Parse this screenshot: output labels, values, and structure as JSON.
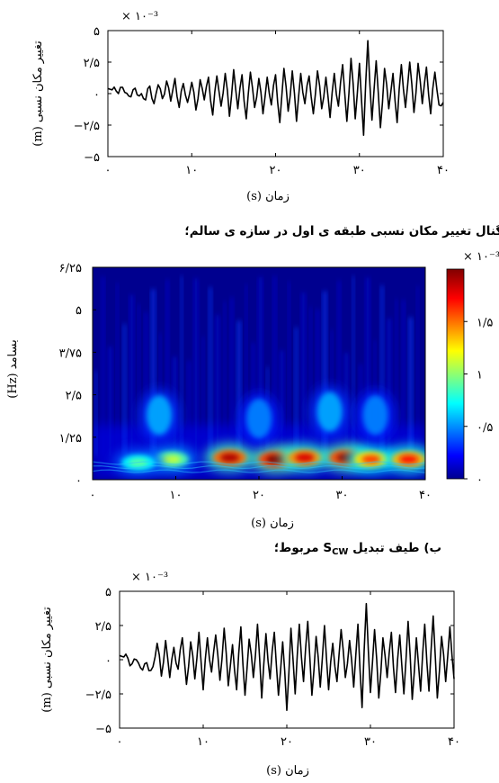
{
  "captions": {
    "a": "الف) سیگنال تغییر مکان نسبی طبقه ی اول در سازه ی سالم؛",
    "b_prefix": "ب) طیف تبدیل",
    "b_sym": "S",
    "b_sub": "CW",
    "b_suffix": "مربوط؛"
  },
  "chart_data": [
    {
      "type": "line",
      "id": "signal-top",
      "xlabel": "زمان (s)",
      "ylabel": "تغییر مکان نسبی (m)",
      "multiplier": "× ۱۰⁻³",
      "xlim": [
        0,
        40
      ],
      "ylim": [
        -5,
        5
      ],
      "xticks": [
        0,
        10,
        20,
        30,
        40
      ],
      "xtick_labels": [
        "۰",
        "۱۰",
        "۲۰",
        "۳۰",
        "۴۰"
      ],
      "yticks": [
        5,
        2.5,
        0,
        -2.5,
        -5
      ],
      "ytick_labels": [
        "۵",
        "۲/۵",
        "۰",
        "−۲/۵",
        "−۵"
      ],
      "series": [
        {
          "x": [
            0,
            0.5,
            1,
            1.5,
            2,
            2.5,
            3,
            3.5,
            4,
            4.5,
            5,
            5.5,
            6,
            6.5,
            7,
            7.5,
            8,
            8.5,
            9,
            9.5,
            10,
            10.5,
            11,
            11.5,
            12,
            12.5,
            13,
            13.5,
            14,
            14.5,
            15,
            15.5,
            16,
            16.5,
            17,
            17.5,
            18,
            18.5,
            19,
            19.5,
            20,
            20.5,
            21,
            21.5,
            22,
            22.5,
            23,
            23.5,
            24,
            24.5,
            25,
            25.5,
            26,
            26.5,
            27,
            27.5,
            28,
            28.5,
            29,
            29.5,
            30,
            30.5,
            31,
            31.5,
            32,
            32.5,
            33,
            33.5,
            34,
            34.5,
            35,
            35.5,
            36,
            36.5,
            37,
            37.5,
            38,
            38.5,
            39,
            39.5,
            40
          ],
          "y": [
            0.4,
            0.3,
            0.2,
            0.5,
            0.1,
            -0.2,
            0.3,
            -0.1,
            0.0,
            -0.5,
            0.6,
            -0.8,
            0.7,
            -0.4,
            1.0,
            -0.6,
            1.2,
            -1.1,
            0.8,
            -0.7,
            0.9,
            -1.3,
            1.1,
            -0.5,
            1.3,
            -1.7,
            1.4,
            -1.0,
            1.6,
            -1.8,
            1.9,
            -1.2,
            1.5,
            -2.0,
            1.7,
            -1.1,
            1.2,
            -1.6,
            1.3,
            -0.9,
            1.5,
            -2.3,
            2.0,
            -1.4,
            1.8,
            -2.2,
            1.6,
            -0.8,
            1.4,
            -1.6,
            1.8,
            -1.2,
            1.3,
            -1.9,
            1.6,
            -1.0,
            2.3,
            -2.2,
            2.8,
            -2.0,
            2.4,
            -3.3,
            4.2,
            -2.1,
            2.6,
            -2.7,
            2.0,
            -1.2,
            1.6,
            -2.3,
            2.3,
            -1.1,
            2.5,
            -1.5,
            2.4,
            -0.8,
            2.1,
            -1.6,
            1.7,
            -0.9,
            -0.7
          ]
        }
      ]
    },
    {
      "type": "heatmap",
      "id": "cwt-spectrum",
      "xlabel": "زمان (s)",
      "ylabel": "بسامد (Hz)",
      "xlim": [
        0,
        40
      ],
      "ylim": [
        0,
        6.25
      ],
      "xticks": [
        0,
        10,
        20,
        30,
        40
      ],
      "xtick_labels": [
        "۰",
        "۱۰",
        "۲۰",
        "۳۰",
        "۴۰"
      ],
      "yticks": [
        0,
        1.25,
        2.5,
        3.75,
        5,
        6.25
      ],
      "ytick_labels": [
        "۰",
        "۱/۲۵",
        "۲/۵",
        "۳/۷۵",
        "۵",
        "۶/۲۵"
      ],
      "colormap": "jet",
      "colorbar": {
        "multiplier": "× ۱۰⁻³",
        "range": [
          0,
          2
        ],
        "ticks": [
          0,
          0.5,
          1,
          1.5
        ],
        "tick_labels": [
          "۰",
          "۰/۵",
          "۱",
          "۱/۵"
        ]
      },
      "blobs": [
        {
          "t": 9.5,
          "f": 0.6,
          "level": 0.55
        },
        {
          "t": 16.5,
          "f": 0.65,
          "level": 0.95
        },
        {
          "t": 22,
          "f": 0.6,
          "level": 1.0
        },
        {
          "t": 25.5,
          "f": 0.65,
          "level": 0.9
        },
        {
          "t": 30.5,
          "f": 0.65,
          "level": 0.98
        },
        {
          "t": 33.5,
          "f": 0.6,
          "level": 0.8
        },
        {
          "t": 38,
          "f": 0.6,
          "level": 0.85
        },
        {
          "t": 5.5,
          "f": 0.5,
          "level": 0.45
        },
        {
          "t": 8,
          "f": 1.9,
          "level": 0.35
        },
        {
          "t": 20,
          "f": 1.8,
          "level": 0.3
        },
        {
          "t": 28.5,
          "f": 2.0,
          "level": 0.35
        },
        {
          "t": 34,
          "f": 1.9,
          "level": 0.3
        }
      ]
    },
    {
      "type": "line",
      "id": "signal-bottom",
      "xlabel": "زمان (s)",
      "ylabel": "تغییر مکان نسبی (m)",
      "multiplier": "× ۱۰⁻³",
      "xlim": [
        0,
        40
      ],
      "ylim": [
        -5,
        5
      ],
      "xticks": [
        0,
        10,
        20,
        30,
        40
      ],
      "xtick_labels": [
        "۰",
        "۱۰",
        "۲۰",
        "۳۰",
        "۴۰"
      ],
      "yticks": [
        5,
        2.5,
        0,
        -2.5,
        -5
      ],
      "ytick_labels": [
        "۵",
        "۲/۵",
        "۰",
        "−۲/۵",
        "−۵"
      ],
      "series": [
        {
          "x": [
            0,
            0.5,
            1,
            1.5,
            2,
            2.5,
            3,
            3.5,
            4,
            4.5,
            5,
            5.5,
            6,
            6.5,
            7,
            7.5,
            8,
            8.5,
            9,
            9.5,
            10,
            10.5,
            11,
            11.5,
            12,
            12.5,
            13,
            13.5,
            14,
            14.5,
            15,
            15.5,
            16,
            16.5,
            17,
            17.5,
            18,
            18.5,
            19,
            19.5,
            20,
            20.5,
            21,
            21.5,
            22,
            22.5,
            23,
            23.5,
            24,
            24.5,
            25,
            25.5,
            26,
            26.5,
            27,
            27.5,
            28,
            28.5,
            29,
            29.5,
            30,
            30.5,
            31,
            31.5,
            32,
            32.5,
            33,
            33.5,
            34,
            34.5,
            35,
            35.5,
            36,
            36.5,
            37,
            37.5,
            38,
            38.5,
            39,
            39.5,
            40
          ],
          "y": [
            0.3,
            0.2,
            0.1,
            -0.3,
            0.0,
            -0.6,
            -0.3,
            -0.8,
            -0.5,
            1.2,
            -1.2,
            1.4,
            -1.3,
            0.9,
            -0.7,
            1.6,
            -1.8,
            1.3,
            -1.4,
            2.0,
            -2.2,
            1.6,
            -0.9,
            1.8,
            -1.5,
            2.3,
            -1.9,
            1.1,
            -2.2,
            2.4,
            -2.6,
            1.5,
            -1.3,
            2.6,
            -2.8,
            1.9,
            -1.4,
            2.0,
            -2.6,
            1.3,
            -3.7,
            2.3,
            -2.5,
            2.6,
            -1.6,
            2.8,
            -2.6,
            1.7,
            -2.0,
            2.5,
            -2.2,
            1.2,
            -1.6,
            2.2,
            -1.3,
            1.4,
            -2.0,
            2.6,
            -3.5,
            4.1,
            -2.4,
            2.2,
            -2.8,
            1.6,
            -1.3,
            2.0,
            -2.4,
            1.8,
            -2.5,
            2.8,
            -2.9,
            1.6,
            -2.3,
            2.6,
            -2.3,
            3.2,
            -2.8,
            1.7,
            -1.6,
            2.4,
            -1.4
          ]
        }
      ]
    }
  ]
}
